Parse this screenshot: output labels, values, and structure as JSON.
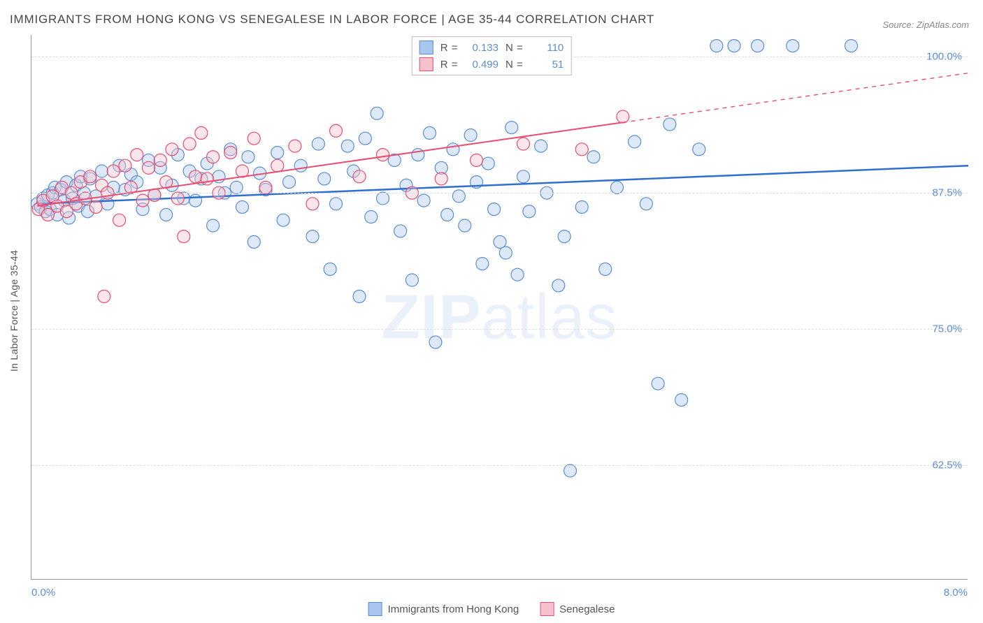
{
  "title": "IMMIGRANTS FROM HONG KONG VS SENEGALESE IN LABOR FORCE | AGE 35-44 CORRELATION CHART",
  "source": "Source: ZipAtlas.com",
  "watermark_prefix": "ZIP",
  "watermark_suffix": "atlas",
  "y_axis_title": "In Labor Force | Age 35-44",
  "chart": {
    "type": "scatter",
    "background_color": "#ffffff",
    "grid_color": "#dddddd",
    "axis_color": "#999999",
    "label_color": "#5b8dd6",
    "text_color": "#555555",
    "title_color": "#454545",
    "xlim": [
      0.0,
      8.0
    ],
    "ylim": [
      52.0,
      102.0
    ],
    "x_ticks": [
      {
        "v": 0.0,
        "label": "0.0%"
      },
      {
        "v": 8.0,
        "label": "8.0%"
      }
    ],
    "y_ticks": [
      {
        "v": 62.5,
        "label": "62.5%"
      },
      {
        "v": 75.0,
        "label": "75.0%"
      },
      {
        "v": 87.5,
        "label": "87.5%"
      },
      {
        "v": 100.0,
        "label": "100.0%"
      }
    ],
    "marker_radius": 9,
    "marker_opacity": 0.4,
    "series": [
      {
        "id": "hk",
        "label": "Immigrants from Hong Kong",
        "fill": "#a9c7ea",
        "stroke": "#5b8dd6",
        "trend_color": "#2f6fd0",
        "trend_width": 2.5,
        "R": "0.133",
        "N": "110",
        "trend": {
          "x1": 0.05,
          "y1": 86.5,
          "x2": 8.0,
          "y2": 90.0,
          "solid_until": 8.0
        },
        "points": [
          [
            0.05,
            86.5
          ],
          [
            0.08,
            86.2
          ],
          [
            0.1,
            87.0
          ],
          [
            0.12,
            85.8
          ],
          [
            0.14,
            87.3
          ],
          [
            0.16,
            86.0
          ],
          [
            0.18,
            87.5
          ],
          [
            0.2,
            88.0
          ],
          [
            0.22,
            85.5
          ],
          [
            0.25,
            87.8
          ],
          [
            0.28,
            86.8
          ],
          [
            0.3,
            88.5
          ],
          [
            0.32,
            85.2
          ],
          [
            0.35,
            87.0
          ],
          [
            0.38,
            88.2
          ],
          [
            0.4,
            86.3
          ],
          [
            0.42,
            89.0
          ],
          [
            0.45,
            87.5
          ],
          [
            0.48,
            85.8
          ],
          [
            0.5,
            88.8
          ],
          [
            0.55,
            87.2
          ],
          [
            0.6,
            89.5
          ],
          [
            0.65,
            86.5
          ],
          [
            0.7,
            88.0
          ],
          [
            0.75,
            90.0
          ],
          [
            0.8,
            87.8
          ],
          [
            0.85,
            89.2
          ],
          [
            0.9,
            88.5
          ],
          [
            0.95,
            86.0
          ],
          [
            1.0,
            90.5
          ],
          [
            1.05,
            87.3
          ],
          [
            1.1,
            89.8
          ],
          [
            1.15,
            85.5
          ],
          [
            1.2,
            88.2
          ],
          [
            1.25,
            91.0
          ],
          [
            1.3,
            87.0
          ],
          [
            1.35,
            89.5
          ],
          [
            1.4,
            86.8
          ],
          [
            1.45,
            88.8
          ],
          [
            1.5,
            90.2
          ],
          [
            1.55,
            84.5
          ],
          [
            1.6,
            89.0
          ],
          [
            1.65,
            87.5
          ],
          [
            1.7,
            91.5
          ],
          [
            1.75,
            88.0
          ],
          [
            1.8,
            86.2
          ],
          [
            1.85,
            90.8
          ],
          [
            1.9,
            83.0
          ],
          [
            1.95,
            89.3
          ],
          [
            2.0,
            87.8
          ],
          [
            2.1,
            91.2
          ],
          [
            2.15,
            85.0
          ],
          [
            2.2,
            88.5
          ],
          [
            2.3,
            90.0
          ],
          [
            2.4,
            83.5
          ],
          [
            2.45,
            92.0
          ],
          [
            2.5,
            88.8
          ],
          [
            2.55,
            80.5
          ],
          [
            2.6,
            86.5
          ],
          [
            2.7,
            91.8
          ],
          [
            2.75,
            89.5
          ],
          [
            2.8,
            78.0
          ],
          [
            2.85,
            92.5
          ],
          [
            2.9,
            85.3
          ],
          [
            2.95,
            94.8
          ],
          [
            3.0,
            87.0
          ],
          [
            3.1,
            90.5
          ],
          [
            3.15,
            84.0
          ],
          [
            3.2,
            88.2
          ],
          [
            3.25,
            79.5
          ],
          [
            3.3,
            91.0
          ],
          [
            3.35,
            86.8
          ],
          [
            3.4,
            93.0
          ],
          [
            3.45,
            73.8
          ],
          [
            3.5,
            89.8
          ],
          [
            3.55,
            85.5
          ],
          [
            3.6,
            91.5
          ],
          [
            3.65,
            87.2
          ],
          [
            3.7,
            84.5
          ],
          [
            3.75,
            92.8
          ],
          [
            3.8,
            88.5
          ],
          [
            3.85,
            81.0
          ],
          [
            3.9,
            90.2
          ],
          [
            3.95,
            86.0
          ],
          [
            4.0,
            83.0
          ],
          [
            4.05,
            82.0
          ],
          [
            4.1,
            93.5
          ],
          [
            4.15,
            80.0
          ],
          [
            4.2,
            89.0
          ],
          [
            4.25,
            85.8
          ],
          [
            4.35,
            91.8
          ],
          [
            4.4,
            87.5
          ],
          [
            4.5,
            79.0
          ],
          [
            4.55,
            83.5
          ],
          [
            4.6,
            62.0
          ],
          [
            4.7,
            86.2
          ],
          [
            4.8,
            90.8
          ],
          [
            4.9,
            80.5
          ],
          [
            5.0,
            88.0
          ],
          [
            5.15,
            92.2
          ],
          [
            5.25,
            86.5
          ],
          [
            5.35,
            70.0
          ],
          [
            5.45,
            93.8
          ],
          [
            5.55,
            68.5
          ],
          [
            5.7,
            91.5
          ],
          [
            5.85,
            101.0
          ],
          [
            6.0,
            101.0
          ],
          [
            6.2,
            101.0
          ],
          [
            6.5,
            101.0
          ],
          [
            7.0,
            101.0
          ]
        ]
      },
      {
        "id": "sn",
        "label": "Senegalese",
        "fill": "#f5c2ce",
        "stroke": "#e84c6f",
        "trend_color": "#e84c6f",
        "trend_width": 2,
        "R": "0.499",
        "N": "51",
        "trend": {
          "x1": 0.05,
          "y1": 86.3,
          "x2": 8.0,
          "y2": 98.5,
          "solid_until": 5.05
        },
        "points": [
          [
            0.06,
            86.0
          ],
          [
            0.1,
            86.8
          ],
          [
            0.14,
            85.5
          ],
          [
            0.18,
            87.2
          ],
          [
            0.22,
            86.3
          ],
          [
            0.26,
            88.0
          ],
          [
            0.3,
            85.8
          ],
          [
            0.34,
            87.5
          ],
          [
            0.38,
            86.5
          ],
          [
            0.42,
            88.5
          ],
          [
            0.46,
            87.0
          ],
          [
            0.5,
            89.0
          ],
          [
            0.55,
            86.2
          ],
          [
            0.6,
            88.2
          ],
          [
            0.62,
            78.0
          ],
          [
            0.65,
            87.5
          ],
          [
            0.7,
            89.5
          ],
          [
            0.75,
            85.0
          ],
          [
            0.8,
            90.0
          ],
          [
            0.85,
            88.0
          ],
          [
            0.9,
            91.0
          ],
          [
            0.95,
            86.8
          ],
          [
            1.0,
            89.8
          ],
          [
            1.05,
            87.3
          ],
          [
            1.1,
            90.5
          ],
          [
            1.15,
            88.5
          ],
          [
            1.2,
            91.5
          ],
          [
            1.25,
            87.0
          ],
          [
            1.3,
            83.5
          ],
          [
            1.35,
            92.0
          ],
          [
            1.4,
            89.0
          ],
          [
            1.45,
            93.0
          ],
          [
            1.5,
            88.8
          ],
          [
            1.55,
            90.8
          ],
          [
            1.6,
            87.5
          ],
          [
            1.7,
            91.2
          ],
          [
            1.8,
            89.5
          ],
          [
            1.9,
            92.5
          ],
          [
            2.0,
            88.0
          ],
          [
            2.1,
            90.0
          ],
          [
            2.25,
            91.8
          ],
          [
            2.4,
            86.5
          ],
          [
            2.6,
            93.2
          ],
          [
            2.8,
            89.0
          ],
          [
            3.0,
            91.0
          ],
          [
            3.25,
            87.5
          ],
          [
            3.5,
            88.8
          ],
          [
            3.8,
            90.5
          ],
          [
            4.2,
            92.0
          ],
          [
            4.7,
            91.5
          ],
          [
            5.05,
            94.5
          ]
        ]
      }
    ],
    "legend_top": {
      "border_color": "#bbbbbb",
      "r_label": "R =",
      "n_label": "N ="
    },
    "legend_bottom_labels": [
      "Immigrants from Hong Kong",
      "Senegalese"
    ]
  }
}
